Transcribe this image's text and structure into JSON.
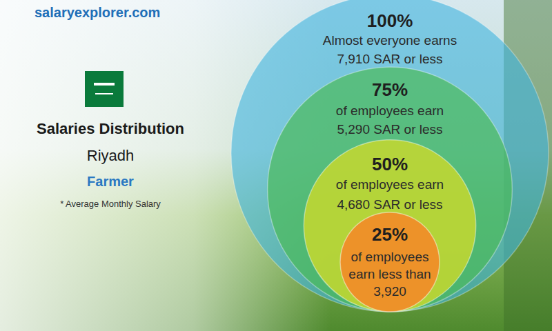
{
  "chart_data": {
    "type": "nested_circles",
    "site": "salaryexplorer.com",
    "title": "Salaries Distribution",
    "subtitle": "Riyadh",
    "job": "Farmer",
    "note": "* Average Monthly Salary",
    "percentiles": [
      100,
      75,
      50,
      25
    ],
    "percentile_labels": [
      "100%",
      "75%",
      "50%",
      "25%"
    ],
    "captions": [
      [
        "Almost everyone earns"
      ],
      [
        "of employees earn"
      ],
      [
        "of employees earn"
      ],
      [
        "of employees",
        "earn less than"
      ]
    ],
    "values": [
      7910,
      5290,
      4680,
      3920
    ],
    "value_labels": [
      "7,910 SAR or less",
      "5,290 SAR or less",
      "4,680 SAR or less",
      "3,920"
    ],
    "colors": [
      "#3fb4e0",
      "#4cbb5a",
      "#c5d82f",
      "#f28c28"
    ]
  }
}
